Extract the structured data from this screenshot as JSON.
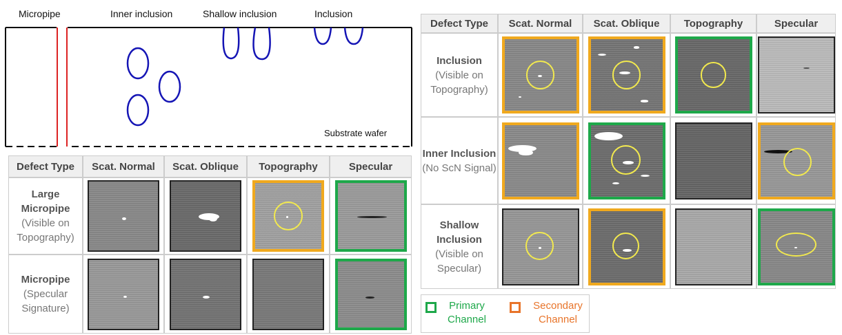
{
  "diagram": {
    "labels": [
      "Micropipe",
      "Inner inclusion",
      "Shallow inclusion",
      "Inclusion"
    ],
    "substrate": "Substrate wafer"
  },
  "left_table": {
    "header": [
      "Defect Type",
      "Scat. Normal",
      "Scat. Oblique",
      "Topography",
      "Specular"
    ],
    "rows": [
      {
        "name": "Large Micropipe",
        "note": "(Visible on Topography)"
      },
      {
        "name": "Micropipe",
        "note": "(Specular Signature)"
      }
    ]
  },
  "right_table": {
    "header": [
      "Defect Type",
      "Scat. Normal",
      "Scat. Oblique",
      "Topography",
      "Specular"
    ],
    "rows": [
      {
        "name": "Inclusion",
        "note": "(Visible on Topography)"
      },
      {
        "name": "Inner Inclusion",
        "note": "(No ScN Signal)"
      },
      {
        "name": "Shallow Inclusion",
        "note": "(Visible on Specular)"
      }
    ]
  },
  "legend": {
    "items": [
      "Primary Channel",
      "Secondary Channel"
    ]
  }
}
